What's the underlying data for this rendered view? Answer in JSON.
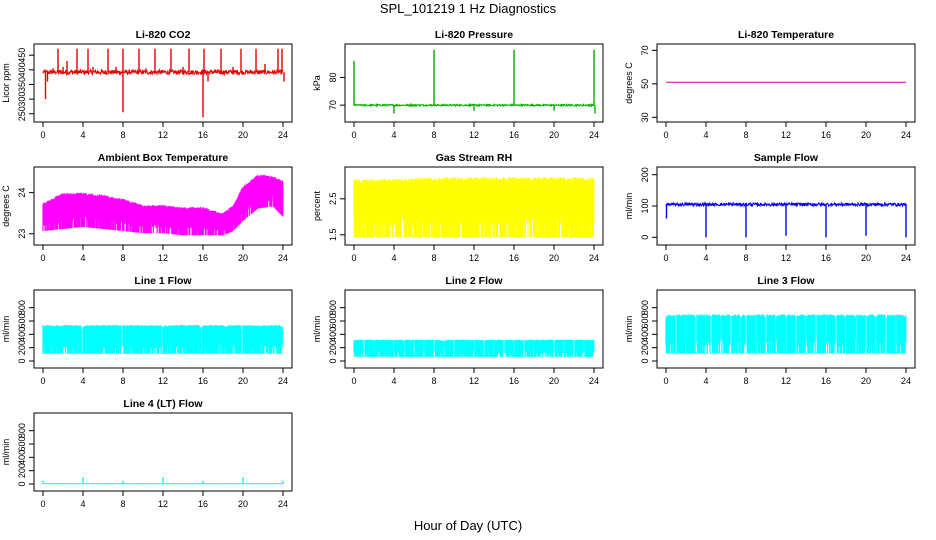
{
  "figure": {
    "title": "SPL_101219  1 Hz Diagnostics",
    "xlabel": "Hour of Day (UTC)"
  },
  "chart_data": [
    {
      "type": "line",
      "title": "Li-820 CO2",
      "ylabel": "Licor ppm",
      "color": "#e60000",
      "x_ticks": [
        0,
        4,
        8,
        12,
        16,
        20,
        24
      ],
      "xlim": [
        0,
        24
      ],
      "y_ticks": [
        250,
        300,
        350,
        400,
        450
      ],
      "ylim": [
        232,
        478
      ],
      "baseline": 392,
      "noise": 8,
      "spikes": [
        {
          "x": 0.25,
          "y": 300
        },
        {
          "x": 0.45,
          "y": 360
        },
        {
          "x": 1.0,
          "y": 405
        },
        {
          "x": 1.5,
          "y": 472
        },
        {
          "x": 2.0,
          "y": 410
        },
        {
          "x": 2.4,
          "y": 430
        },
        {
          "x": 3.4,
          "y": 472
        },
        {
          "x": 4.5,
          "y": 472
        },
        {
          "x": 5.0,
          "y": 410
        },
        {
          "x": 6.5,
          "y": 472
        },
        {
          "x": 7.3,
          "y": 410
        },
        {
          "x": 8.0,
          "y": 255
        },
        {
          "x": 8.0,
          "y": 472
        },
        {
          "x": 9.6,
          "y": 472
        },
        {
          "x": 10.3,
          "y": 405
        },
        {
          "x": 11.2,
          "y": 472
        },
        {
          "x": 12.8,
          "y": 472
        },
        {
          "x": 14.0,
          "y": 410
        },
        {
          "x": 14.6,
          "y": 472
        },
        {
          "x": 16.0,
          "y": 238
        },
        {
          "x": 16.1,
          "y": 472
        },
        {
          "x": 16.5,
          "y": 360
        },
        {
          "x": 17.8,
          "y": 472
        },
        {
          "x": 19.0,
          "y": 410
        },
        {
          "x": 19.8,
          "y": 472
        },
        {
          "x": 21.3,
          "y": 472
        },
        {
          "x": 22.2,
          "y": 420
        },
        {
          "x": 23.5,
          "y": 472
        },
        {
          "x": 23.9,
          "y": 472
        },
        {
          "x": 24.1,
          "y": 360
        }
      ]
    },
    {
      "type": "line",
      "title": "Li-820 Pressure",
      "ylabel": "kPa",
      "color": "#00b000",
      "x_ticks": [
        0,
        4,
        8,
        12,
        16,
        20,
        24
      ],
      "xlim": [
        0,
        24
      ],
      "y_ticks": [
        70,
        80
      ],
      "ylim": [
        65,
        91
      ],
      "baseline": 70,
      "noise": 0.3,
      "spikes": [
        {
          "x": 0.0,
          "y": 86
        },
        {
          "x": 4.0,
          "y": 67
        },
        {
          "x": 8.0,
          "y": 90
        },
        {
          "x": 12.0,
          "y": 68
        },
        {
          "x": 16.0,
          "y": 90
        },
        {
          "x": 20.0,
          "y": 68
        },
        {
          "x": 24.0,
          "y": 90
        },
        {
          "x": 24.1,
          "y": 67
        }
      ]
    },
    {
      "type": "line",
      "title": "Li-820 Temperature",
      "ylabel": "degrees C",
      "color": "#c000c0",
      "x_ticks": [
        0,
        4,
        8,
        12,
        16,
        20,
        24
      ],
      "xlim": [
        0,
        24
      ],
      "y_ticks": [
        30,
        50,
        70
      ],
      "ylim": [
        29,
        72
      ],
      "baseline": 51,
      "noise": 0,
      "spikes": []
    },
    {
      "type": "area",
      "title": "Ambient Box Temperature",
      "ylabel": "degrees C",
      "color": "#ff00ff",
      "x_ticks": [
        0,
        4,
        8,
        12,
        16,
        20,
        24
      ],
      "xlim": [
        0,
        24
      ],
      "y_ticks": [
        23.0,
        24.0
      ],
      "ylim": [
        22.8,
        24.55
      ],
      "band": [
        {
          "x": 0,
          "lo": 23.05,
          "hi": 23.75
        },
        {
          "x": 2,
          "lo": 23.1,
          "hi": 24.0
        },
        {
          "x": 4,
          "lo": 23.15,
          "hi": 24.0
        },
        {
          "x": 6,
          "lo": 23.1,
          "hi": 23.95
        },
        {
          "x": 8,
          "lo": 23.05,
          "hi": 23.85
        },
        {
          "x": 10,
          "lo": 23.0,
          "hi": 23.7
        },
        {
          "x": 12,
          "lo": 23.0,
          "hi": 23.7
        },
        {
          "x": 14,
          "lo": 22.95,
          "hi": 23.65
        },
        {
          "x": 16,
          "lo": 22.95,
          "hi": 23.65
        },
        {
          "x": 18,
          "lo": 22.95,
          "hi": 23.5
        },
        {
          "x": 19,
          "lo": 23.05,
          "hi": 23.7
        },
        {
          "x": 20,
          "lo": 23.3,
          "hi": 24.15
        },
        {
          "x": 21.5,
          "lo": 23.6,
          "hi": 24.45
        },
        {
          "x": 23,
          "lo": 23.65,
          "hi": 24.4
        },
        {
          "x": 24,
          "lo": 23.4,
          "hi": 24.3
        }
      ]
    },
    {
      "type": "area",
      "title": "Gas Stream RH",
      "ylabel": "percent",
      "color": "#ffff00",
      "x_ticks": [
        0,
        4,
        8,
        12,
        16,
        20,
        24
      ],
      "xlim": [
        0,
        24
      ],
      "y_ticks": [
        1.5,
        2.5
      ],
      "ylim": [
        1.3,
        3.3
      ],
      "band": [
        {
          "x": 0,
          "lo": 1.4,
          "hi": 3.05
        },
        {
          "x": 4,
          "lo": 1.4,
          "hi": 3.05
        },
        {
          "x": 8,
          "lo": 1.4,
          "hi": 3.1
        },
        {
          "x": 12,
          "lo": 1.4,
          "hi": 3.1
        },
        {
          "x": 16,
          "lo": 1.4,
          "hi": 3.1
        },
        {
          "x": 20,
          "lo": 1.4,
          "hi": 3.1
        },
        {
          "x": 24,
          "lo": 1.4,
          "hi": 3.1
        }
      ]
    },
    {
      "type": "line",
      "title": "Sample Flow",
      "ylabel": "ml/min",
      "color": "#0000ff",
      "x_ticks": [
        0,
        4,
        8,
        12,
        16,
        20,
        24
      ],
      "xlim": [
        0,
        24
      ],
      "y_ticks": [
        0,
        100,
        200
      ],
      "ylim": [
        -15,
        215
      ],
      "baseline": 105,
      "noise": 5,
      "spikes": [
        {
          "x": 0.05,
          "y": 60
        },
        {
          "x": 4.0,
          "y": 0
        },
        {
          "x": 8.0,
          "y": 0
        },
        {
          "x": 12.0,
          "y": 5
        },
        {
          "x": 16.0,
          "y": 0
        },
        {
          "x": 20.0,
          "y": 5
        },
        {
          "x": 24.0,
          "y": 0
        }
      ]
    },
    {
      "type": "area",
      "title": "Line 1 Flow",
      "ylabel": "ml/min",
      "color": "#00ffff",
      "x_ticks": [
        0,
        4,
        8,
        12,
        16,
        20,
        24
      ],
      "xlim": [
        0,
        24
      ],
      "y_ticks": [
        0,
        200,
        400,
        600,
        800
      ],
      "ylim": [
        -60,
        1020
      ],
      "band": [
        {
          "x": 0,
          "lo": 100,
          "hi": 540
        },
        {
          "x": 24,
          "lo": 100,
          "hi": 540
        }
      ],
      "gaps": [
        3.9,
        7.9,
        11.9,
        15.9,
        19.9,
        23.9
      ]
    },
    {
      "type": "area",
      "title": "Line 2 Flow",
      "ylabel": "ml/min",
      "color": "#00ffff",
      "x_ticks": [
        0,
        4,
        8,
        12,
        16,
        20,
        24
      ],
      "xlim": [
        0,
        24
      ],
      "y_ticks": [
        0,
        200,
        400,
        600,
        800
      ],
      "ylim": [
        -60,
        1020
      ],
      "band": [
        {
          "x": 0,
          "lo": 60,
          "hi": 320
        },
        {
          "x": 24,
          "lo": 60,
          "hi": 320
        }
      ],
      "gaps": [
        1.0,
        2.0,
        4.0,
        5.0,
        6.0,
        7.0,
        8.0,
        9.0,
        10.0,
        12.0,
        13.0,
        14.0,
        15.0,
        16.0,
        17.0,
        18.0,
        20.0,
        21.0,
        22.0,
        23.0
      ]
    },
    {
      "type": "area",
      "title": "Line 3 Flow",
      "ylabel": "ml/min",
      "color": "#00ffff",
      "x_ticks": [
        0,
        4,
        8,
        12,
        16,
        20,
        24
      ],
      "xlim": [
        0,
        24
      ],
      "y_ticks": [
        0,
        200,
        400,
        600,
        800
      ],
      "ylim": [
        -60,
        1020
      ],
      "band": [
        {
          "x": 0,
          "lo": 100,
          "hi": 700
        },
        {
          "x": 24,
          "lo": 100,
          "hi": 700
        }
      ],
      "gaps": [
        1.0,
        2.0,
        3.0,
        4.0,
        4.5,
        5.5,
        6.5,
        7.5,
        8.0,
        9.0,
        10.0,
        11.0,
        12.0,
        13.0,
        14.0,
        15.0,
        16.0,
        17.0,
        18.0,
        19.0,
        20.0,
        21.0,
        22.0,
        23.0
      ]
    },
    {
      "type": "line",
      "title": "Line 4 (LT) Flow",
      "ylabel": "ml/min",
      "color": "#00ffff",
      "x_ticks": [
        0,
        4,
        8,
        12,
        16,
        20,
        24
      ],
      "xlim": [
        0,
        24
      ],
      "y_ticks": [
        0,
        200,
        400,
        600,
        800
      ],
      "ylim": [
        -60,
        1020
      ],
      "baseline": 5,
      "noise": 2,
      "spikes": [
        {
          "x": 0.0,
          "y": 50
        },
        {
          "x": 4.0,
          "y": 100
        },
        {
          "x": 8.0,
          "y": 50
        },
        {
          "x": 12.0,
          "y": 100
        },
        {
          "x": 16.0,
          "y": 50
        },
        {
          "x": 20.0,
          "y": 100
        },
        {
          "x": 24.0,
          "y": 50
        }
      ]
    }
  ]
}
